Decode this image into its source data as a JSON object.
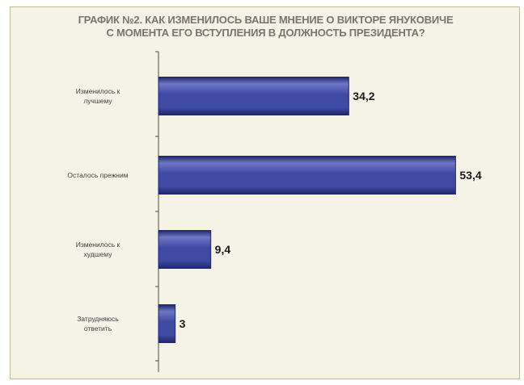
{
  "chart_data": {
    "type": "bar",
    "orientation": "horizontal",
    "title_line1": "ГРАФИК №2. КАК ИЗМЕНИЛОСЬ ВАШЕ МНЕНИЕ О ВИКТОРЕ ЯНУКОВИЧЕ",
    "title_line2": "С МОМЕНТА ЕГО ВСТУПЛЕНИЯ В ДОЛЖНОСТЬ ПРЕЗИДЕНТА?",
    "categories": [
      [
        "Изменилось к",
        "лучшему"
      ],
      [
        "Осталось прежним"
      ],
      [
        "Изменилось к",
        "худшему"
      ],
      [
        "Затрудняюсь",
        "ответить"
      ]
    ],
    "values": [
      34.2,
      53.4,
      9.4,
      3
    ],
    "value_labels": [
      "34,2",
      "53,4",
      "9,4",
      "3"
    ],
    "xlim": [
      0,
      60
    ],
    "grid": false,
    "bar_color": "#3f4aa5",
    "bar_dark": "#1f2669",
    "bar_light": "#6d77c4",
    "axis_color": "#4a4a4a"
  }
}
